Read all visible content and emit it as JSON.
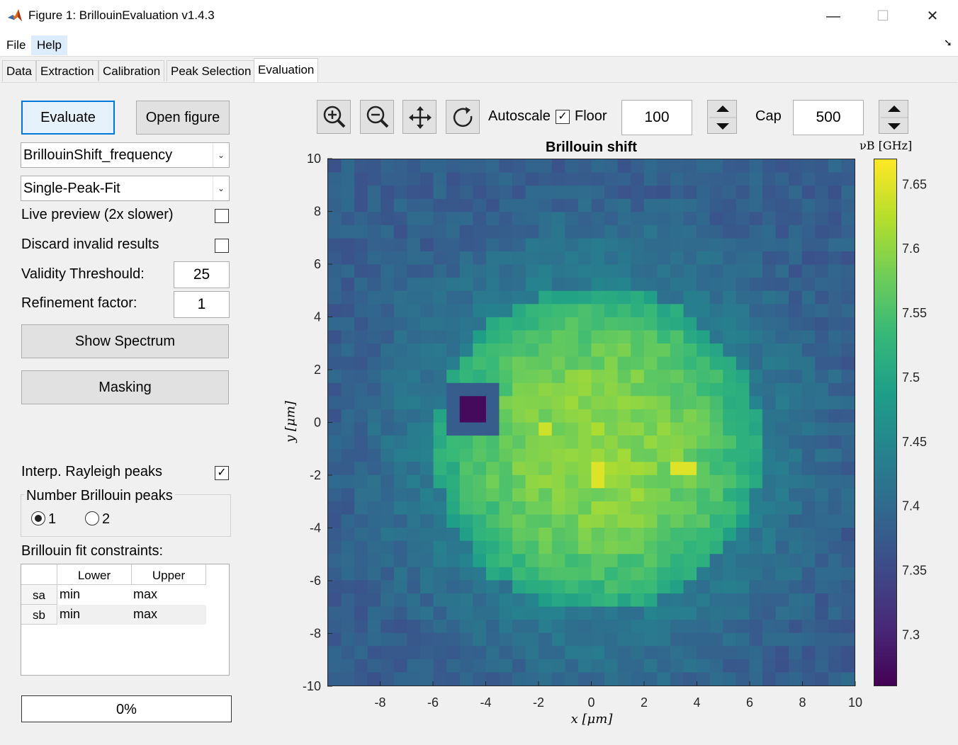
{
  "window": {
    "title": "Figure 1: BrillouinEvaluation v1.4.3",
    "minimize": "—",
    "maximize": "☐",
    "close": "✕"
  },
  "menu": {
    "file": "File",
    "help": "Help",
    "dock_arrow": "➘"
  },
  "tabs": [
    "Data",
    "Extraction",
    "Calibration",
    "Peak Selection",
    "Evaluation"
  ],
  "left": {
    "evaluate": "Evaluate",
    "open_figure": "Open figure",
    "parameter_select": "BrillouinShift_frequency",
    "fit_select": "Single-Peak-Fit",
    "live_preview": "Live preview (2x slower)",
    "discard_invalid": "Discard invalid results",
    "validity_label": "Validity Threshould:",
    "validity_value": "25",
    "refinement_label": "Refinement factor:",
    "refinement_value": "1",
    "show_spectrum": "Show Spectrum",
    "masking": "Masking",
    "interp_rayleigh": "Interp. Rayleigh peaks",
    "interp_checked": true,
    "peaks_group": "Number Brillouin peaks",
    "peak_option_1": "1",
    "peak_option_2": "2",
    "constraints_label": "Brillouin fit constraints:",
    "table": {
      "columns": [
        "Lower",
        "Upper"
      ],
      "rows": [
        {
          "name": "sa",
          "lower": "min",
          "upper": "max"
        },
        {
          "name": "sb",
          "lower": "min",
          "upper": "max"
        }
      ]
    },
    "progress": "0%"
  },
  "toolbar": {
    "autoscale": "Autoscale",
    "floor_label": "Floor",
    "floor_checked": true,
    "floor_value": "100",
    "cap_label": "Cap",
    "cap_value": "500"
  },
  "chart_data": {
    "type": "heatmap",
    "title": "Brillouin shift",
    "xlabel": "x [μm]",
    "ylabel": "y [μm]",
    "colorbar_label": "νB [GHz]",
    "xlim": [
      -10,
      10
    ],
    "ylim": [
      -10,
      10
    ],
    "x_ticks": [
      -8,
      -6,
      -4,
      -2,
      0,
      2,
      4,
      6,
      8,
      10
    ],
    "y_ticks": [
      10,
      8,
      6,
      4,
      2,
      0,
      -2,
      -4,
      -6,
      -8,
      -10
    ],
    "colorbar_range": [
      7.26,
      7.67
    ],
    "colorbar_ticks": [
      "7.65",
      "7.6",
      "7.55",
      "7.5",
      "7.45",
      "7.4",
      "7.35",
      "7.3"
    ],
    "colormap": "viridis",
    "grid_resolution": [
      40,
      40
    ],
    "disk": {
      "center": [
        0.2,
        -1.0
      ],
      "radius": 6.2,
      "peak_value": 7.6,
      "background_value": 7.43
    },
    "dark_spot": {
      "x_range": [
        -5,
        -4
      ],
      "y_range": [
        0,
        1
      ],
      "value": 7.27
    },
    "hot_spots": [
      {
        "x": 0.3,
        "y": -2.1,
        "value": 7.65
      },
      {
        "x": 3.5,
        "y": -1.7,
        "value": 7.65
      },
      {
        "x": -1.7,
        "y": -0.2,
        "value": 7.64
      }
    ]
  }
}
